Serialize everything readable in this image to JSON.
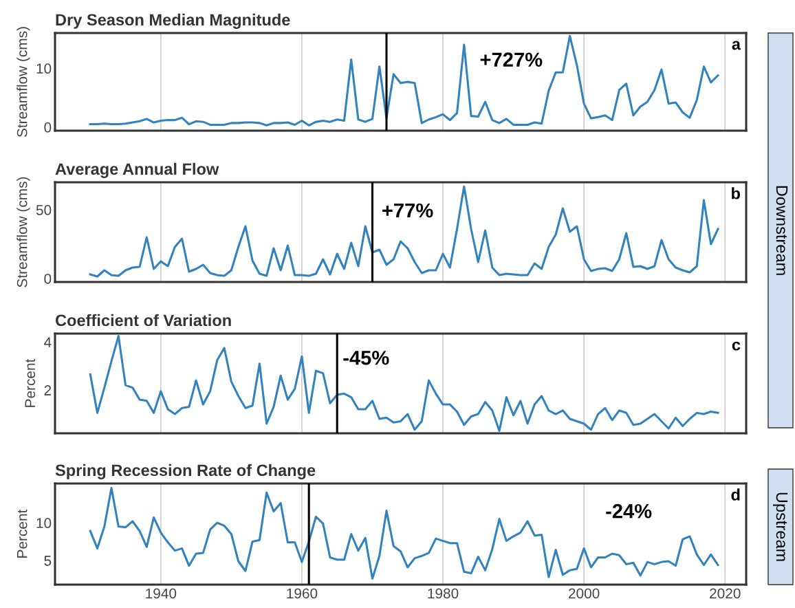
{
  "chart_data": [
    {
      "type": "line",
      "title": "Dry Season Median Magnitude",
      "ylabel": "Streamflow (cms)",
      "x": [
        1930,
        1931,
        1932,
        1933,
        1934,
        1935,
        1936,
        1937,
        1938,
        1939,
        1940,
        1941,
        1942,
        1943,
        1944,
        1945,
        1946,
        1947,
        1948,
        1949,
        1950,
        1951,
        1952,
        1953,
        1954,
        1955,
        1956,
        1957,
        1958,
        1959,
        1960,
        1961,
        1962,
        1963,
        1964,
        1965,
        1966,
        1967,
        1968,
        1969,
        1970,
        1971,
        1972,
        1973,
        1974,
        1975,
        1976,
        1977,
        1978,
        1979,
        1980,
        1981,
        1982,
        1983,
        1984,
        1985,
        1986,
        1987,
        1988,
        1989,
        1990,
        1991,
        1992,
        1993,
        1994,
        1995,
        1996,
        1997,
        1998,
        1999,
        2000,
        2001,
        2002,
        2003,
        2004,
        2005,
        2006,
        2007,
        2008,
        2009,
        2010,
        2011,
        2012,
        2013,
        2014,
        2015,
        2016,
        2017,
        2018,
        2019
      ],
      "series": [
        {
          "color": "#3182bd",
          "values": [
            0.5,
            0.5,
            0.6,
            0.5,
            0.5,
            0.6,
            0.8,
            1.0,
            1.4,
            0.8,
            1.1,
            1.2,
            1.2,
            1.6,
            0.5,
            1.0,
            0.9,
            0.4,
            0.4,
            0.4,
            0.7,
            0.7,
            0.8,
            0.8,
            0.7,
            0.3,
            0.7,
            0.7,
            0.8,
            0.4,
            1.1,
            0.3,
            0.9,
            1.1,
            0.9,
            1.3,
            1.1,
            11.5,
            1.3,
            0.9,
            1.4,
            10.3,
            1.5,
            9.0,
            7.5,
            7.7,
            7.5,
            0.7,
            1.3,
            1.7,
            2.2,
            1.2,
            2.4,
            14.0,
            1.9,
            1.8,
            4.3,
            1.2,
            0.7,
            1.4,
            0.4,
            0.4,
            0.4,
            0.8,
            0.6,
            6.2,
            9.3,
            9.3,
            15.5,
            10.5,
            4.0,
            1.5,
            1.7,
            2.0,
            1.2,
            6.3,
            7.4,
            2.0,
            3.5,
            4.3,
            6.3,
            9.8,
            4.0,
            4.2,
            2.5,
            1.6,
            4.6,
            10.3,
            7.6,
            8.8
          ]
        }
      ],
      "xlim": [
        1925,
        2023
      ],
      "xticks": [
        1940,
        1960,
        1980,
        2000,
        2020
      ],
      "ylim": [
        -0.6,
        16
      ],
      "yticks": [
        0,
        10
      ],
      "grid": "x",
      "tick_labels": "y",
      "line_style": "solid",
      "ref_lines": [
        {
          "axis": "x",
          "value": 1972,
          "color": "#000000"
        }
      ],
      "annotations": [
        "a",
        "+727%",
        "Downstream"
      ]
    },
    {
      "type": "line",
      "title": "Average Annual Flow",
      "ylabel": "Streamflow (cms)",
      "x": [
        1930,
        1931,
        1932,
        1933,
        1934,
        1935,
        1936,
        1937,
        1938,
        1939,
        1940,
        1941,
        1942,
        1943,
        1944,
        1945,
        1946,
        1947,
        1948,
        1949,
        1950,
        1951,
        1952,
        1953,
        1954,
        1955,
        1956,
        1957,
        1958,
        1959,
        1960,
        1961,
        1962,
        1963,
        1964,
        1965,
        1966,
        1967,
        1968,
        1969,
        1970,
        1971,
        1972,
        1973,
        1974,
        1975,
        1976,
        1977,
        1978,
        1979,
        1980,
        1981,
        1982,
        1983,
        1984,
        1985,
        1986,
        1987,
        1988,
        1989,
        1990,
        1991,
        1992,
        1993,
        1994,
        1995,
        1996,
        1997,
        1998,
        1999,
        2000,
        2001,
        2002,
        2003,
        2004,
        2005,
        2006,
        2007,
        2008,
        2009,
        2010,
        2011,
        2012,
        2013,
        2014,
        2015,
        2016,
        2017,
        2018,
        2019
      ],
      "series": [
        {
          "color": "#3182bd",
          "values": [
            3,
            1.5,
            6,
            2.5,
            2,
            6,
            8,
            8.5,
            30,
            7,
            12.5,
            9,
            23,
            29,
            5,
            7,
            10,
            4,
            2.5,
            2,
            6,
            23,
            38,
            13,
            3.5,
            2,
            22,
            6,
            24,
            2.5,
            2.5,
            2,
            3.5,
            14,
            3,
            18,
            7,
            26,
            9,
            38,
            19,
            21,
            10,
            14,
            27,
            22,
            12,
            4,
            6,
            6,
            18,
            8,
            36,
            67,
            36,
            12,
            35,
            8,
            2.5,
            3.5,
            3,
            2.5,
            2.5,
            11,
            7,
            23,
            32,
            51,
            34,
            38,
            14,
            5.5,
            7,
            7.5,
            5.5,
            14,
            33,
            8.5,
            9,
            7,
            9,
            28,
            14,
            8,
            6,
            4.5,
            9,
            57,
            25,
            36
          ]
        }
      ],
      "xlim": [
        1925,
        2023
      ],
      "xticks": [
        1940,
        1960,
        1980,
        2000,
        2020
      ],
      "ylim": [
        -2.5,
        70
      ],
      "yticks": [
        0,
        50
      ],
      "grid": "x",
      "tick_labels": "y",
      "line_style": "solid",
      "ref_lines": [
        {
          "axis": "x",
          "value": 1970,
          "color": "#000000"
        }
      ],
      "annotations": [
        "b",
        "+77%"
      ]
    },
    {
      "type": "line",
      "title": "Coefficient of Variation",
      "ylabel": "Percent",
      "x": [
        1930,
        1931,
        1932,
        1933,
        1934,
        1935,
        1936,
        1937,
        1938,
        1939,
        1940,
        1941,
        1942,
        1943,
        1944,
        1945,
        1946,
        1947,
        1948,
        1949,
        1950,
        1951,
        1952,
        1953,
        1954,
        1955,
        1956,
        1957,
        1958,
        1959,
        1960,
        1961,
        1962,
        1963,
        1964,
        1965,
        1966,
        1967,
        1968,
        1969,
        1970,
        1971,
        1972,
        1973,
        1974,
        1975,
        1976,
        1977,
        1978,
        1979,
        1980,
        1981,
        1982,
        1983,
        1984,
        1985,
        1986,
        1987,
        1988,
        1989,
        1990,
        1991,
        1992,
        1993,
        1994,
        1995,
        1996,
        1997,
        1998,
        1999,
        2000,
        2001,
        2002,
        2003,
        2004,
        2005,
        2006,
        2007,
        2008,
        2009,
        2010,
        2011,
        2012,
        2013,
        2014,
        2015,
        2016,
        2017,
        2018,
        2019
      ],
      "series": [
        {
          "color": "#3182bd",
          "values": [
            2.65,
            1.05,
            2.1,
            3.2,
            4.25,
            2.2,
            2.1,
            1.6,
            1.55,
            1.05,
            1.95,
            1.2,
            1.0,
            1.25,
            1.3,
            2.4,
            1.4,
            1.95,
            3.25,
            3.75,
            2.35,
            1.75,
            1.25,
            1.35,
            3.1,
            0.6,
            1.3,
            2.6,
            1.6,
            2.05,
            3.4,
            1.05,
            2.8,
            2.7,
            1.45,
            1.8,
            1.85,
            1.7,
            1.2,
            1.2,
            1.55,
            0.8,
            0.85,
            0.65,
            0.7,
            1.0,
            0.35,
            0.7,
            2.4,
            1.85,
            1.4,
            1.4,
            1.1,
            0.55,
            0.9,
            1.0,
            1.5,
            1.15,
            0.3,
            1.7,
            0.95,
            1.55,
            0.6,
            1.4,
            1.75,
            1.15,
            1.0,
            1.15,
            0.8,
            0.7,
            0.6,
            0.35,
            1.0,
            1.25,
            0.75,
            1.15,
            1.05,
            0.55,
            0.6,
            0.8,
            1.0,
            0.7,
            0.4,
            0.85,
            0.5,
            0.8,
            1.05,
            1.0,
            1.1,
            1.05
          ]
        }
      ],
      "xlim": [
        1925,
        2023
      ],
      "xticks": [
        1940,
        1960,
        1980,
        2000,
        2020
      ],
      "ylim": [
        0.2,
        4.35
      ],
      "yticks": [
        2,
        4
      ],
      "grid": "x",
      "tick_labels": "y",
      "line_style": "solid",
      "ref_lines": [
        {
          "axis": "x",
          "value": 1965,
          "color": "#000000"
        }
      ],
      "annotations": [
        "c",
        "-45%"
      ]
    },
    {
      "type": "line",
      "title": "Spring Recession Rate of Change",
      "ylabel": "Percent",
      "x": [
        1930,
        1931,
        1932,
        1933,
        1934,
        1935,
        1936,
        1937,
        1938,
        1939,
        1940,
        1941,
        1942,
        1943,
        1944,
        1945,
        1946,
        1947,
        1948,
        1949,
        1950,
        1951,
        1952,
        1953,
        1954,
        1955,
        1956,
        1957,
        1958,
        1959,
        1960,
        1961,
        1962,
        1963,
        1964,
        1965,
        1966,
        1967,
        1968,
        1969,
        1970,
        1971,
        1972,
        1973,
        1974,
        1975,
        1976,
        1977,
        1978,
        1979,
        1980,
        1981,
        1982,
        1983,
        1984,
        1985,
        1986,
        1987,
        1988,
        1989,
        1990,
        1991,
        1992,
        1993,
        1994,
        1995,
        1996,
        1997,
        1998,
        1999,
        2000,
        2001,
        2002,
        2003,
        2004,
        2005,
        2006,
        2007,
        2008,
        2009,
        2010,
        2011,
        2012,
        2013,
        2014,
        2015,
        2016,
        2017,
        2018,
        2019
      ],
      "series": [
        {
          "color": "#3182bd",
          "values": [
            8.9,
            6.6,
            9.5,
            14.6,
            9.5,
            9.4,
            10.2,
            8.9,
            6.8,
            10.7,
            8.7,
            7.4,
            6.3,
            6.6,
            4.3,
            5.9,
            6.0,
            9.1,
            10.0,
            9.6,
            8.5,
            4.9,
            3.6,
            7.5,
            7.7,
            14.0,
            11.5,
            12.6,
            7.4,
            7.4,
            4.8,
            7.5,
            10.8,
            9.9,
            5.4,
            5.1,
            5.1,
            8.5,
            6.3,
            8.0,
            2.6,
            5.6,
            11.6,
            6.9,
            6.2,
            4.1,
            5.3,
            5.6,
            6.0,
            7.9,
            7.6,
            7.3,
            7.3,
            3.5,
            3.3,
            5.5,
            3.7,
            6.5,
            10.5,
            7.6,
            8.2,
            8.7,
            10.2,
            8.3,
            8.4,
            2.8,
            6.4,
            3.1,
            3.7,
            3.9,
            6.6,
            4.1,
            5.4,
            5.4,
            5.9,
            5.7,
            4.5,
            4.7,
            3.0,
            4.8,
            4.5,
            4.8,
            4.9,
            4.3,
            7.8,
            8.2,
            5.8,
            4.4,
            5.8,
            4.4
          ]
        }
      ],
      "xlim": [
        1925,
        2023
      ],
      "xticks": [
        1940,
        1960,
        1980,
        2000,
        2020
      ],
      "ylim": [
        1.8,
        15.2
      ],
      "yticks": [
        5,
        10
      ],
      "grid": "x",
      "line_style": "solid",
      "ref_lines": [
        {
          "axis": "x",
          "value": 1961,
          "color": "#000000"
        }
      ],
      "annotations": [
        "d",
        "-24%",
        "Upstream"
      ]
    }
  ]
}
